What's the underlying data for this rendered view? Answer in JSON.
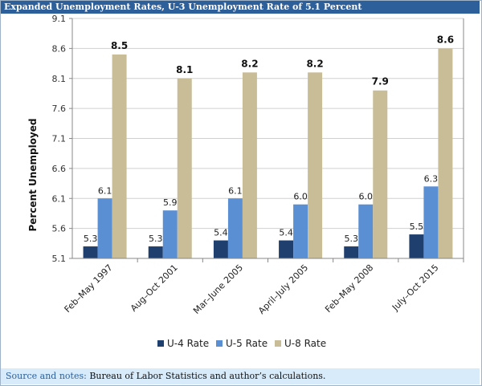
{
  "title": "Expanded Unemployment Rates, U-3 Unemployment Rate of 5.1 Percent",
  "notes": {
    "label": "Source and notes:",
    "text": "Bureau of Labor Statistics and author’s calculations."
  },
  "chart_data": {
    "type": "bar",
    "title": "Expanded Unemployment Rates, U-3 Unemployment Rate of 5.1 Percent",
    "xlabel": "",
    "ylabel": "Percent Unemployed",
    "ylim": [
      5.1,
      9.1
    ],
    "yticks": [
      "5.1",
      "5.6",
      "6.1",
      "6.6",
      "7.1",
      "7.6",
      "8.1",
      "8.6",
      "9.1"
    ],
    "grid": true,
    "legend_position": "bottom-center",
    "categories": [
      "Feb–May 1997",
      "Aug–Oct 2001",
      "Mar–June 2005",
      "April–July 2005",
      "Feb–May 2008",
      "July–Oct 2015"
    ],
    "series": [
      {
        "name": "U-4 Rate",
        "color": "#1f3f6e",
        "values": [
          5.3,
          5.3,
          5.4,
          5.4,
          5.3,
          5.5
        ],
        "labels": [
          "5.3",
          "5.3",
          "5.4",
          "5.4",
          "5.3",
          "5.5"
        ]
      },
      {
        "name": "U-5 Rate",
        "color": "#5b8fd4",
        "values": [
          6.1,
          5.9,
          6.1,
          6.0,
          6.0,
          6.3
        ],
        "labels": [
          "6.1",
          "5.9",
          "6.1",
          "6.0",
          "6.0",
          "6.3"
        ]
      },
      {
        "name": "U-8 Rate",
        "color": "#c9bd98",
        "values": [
          8.5,
          8.1,
          8.2,
          8.2,
          7.9,
          8.6
        ],
        "labels": [
          "8.5",
          "8.1",
          "8.2",
          "8.2",
          "7.9",
          "8.6"
        ]
      }
    ]
  }
}
